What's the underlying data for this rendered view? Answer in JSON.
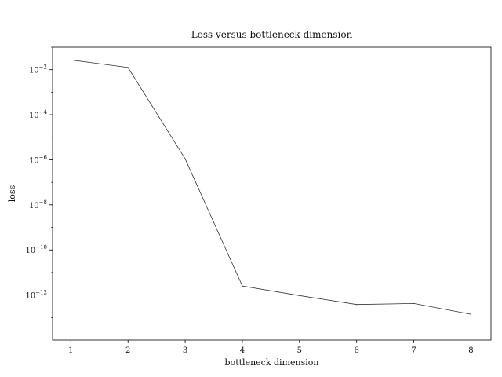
{
  "chart_data": {
    "type": "line",
    "title": "Loss versus bottleneck dimension",
    "xlabel": "bottleneck dimension",
    "ylabel": "loss",
    "x": [
      1,
      2,
      3,
      4,
      5,
      6,
      7,
      8
    ],
    "series": [
      {
        "values": [
          0.027,
          0.0125,
          1.1e-06,
          2.5e-12,
          9.5e-13,
          3.8e-13,
          4.2e-13,
          1.4e-13
        ]
      }
    ],
    "xlim": [
      0.68,
      8.35
    ],
    "ylim": [
      1e-14,
      0.1
    ],
    "yscale": "log",
    "xticks": [
      "1",
      "2",
      "3",
      "4",
      "5",
      "6",
      "7",
      "8"
    ],
    "yticks": [
      {
        "base": "10",
        "exp": "−2"
      },
      {
        "base": "10",
        "exp": "−4"
      },
      {
        "base": "10",
        "exp": "−6"
      },
      {
        "base": "10",
        "exp": "−8"
      },
      {
        "base": "10",
        "exp": "−10"
      },
      {
        "base": "10",
        "exp": "−12"
      }
    ],
    "ytick_values": [
      0.01,
      0.0001,
      1e-06,
      1e-08,
      1e-10,
      1e-12
    ],
    "grid": false,
    "line_color": "#333333"
  }
}
